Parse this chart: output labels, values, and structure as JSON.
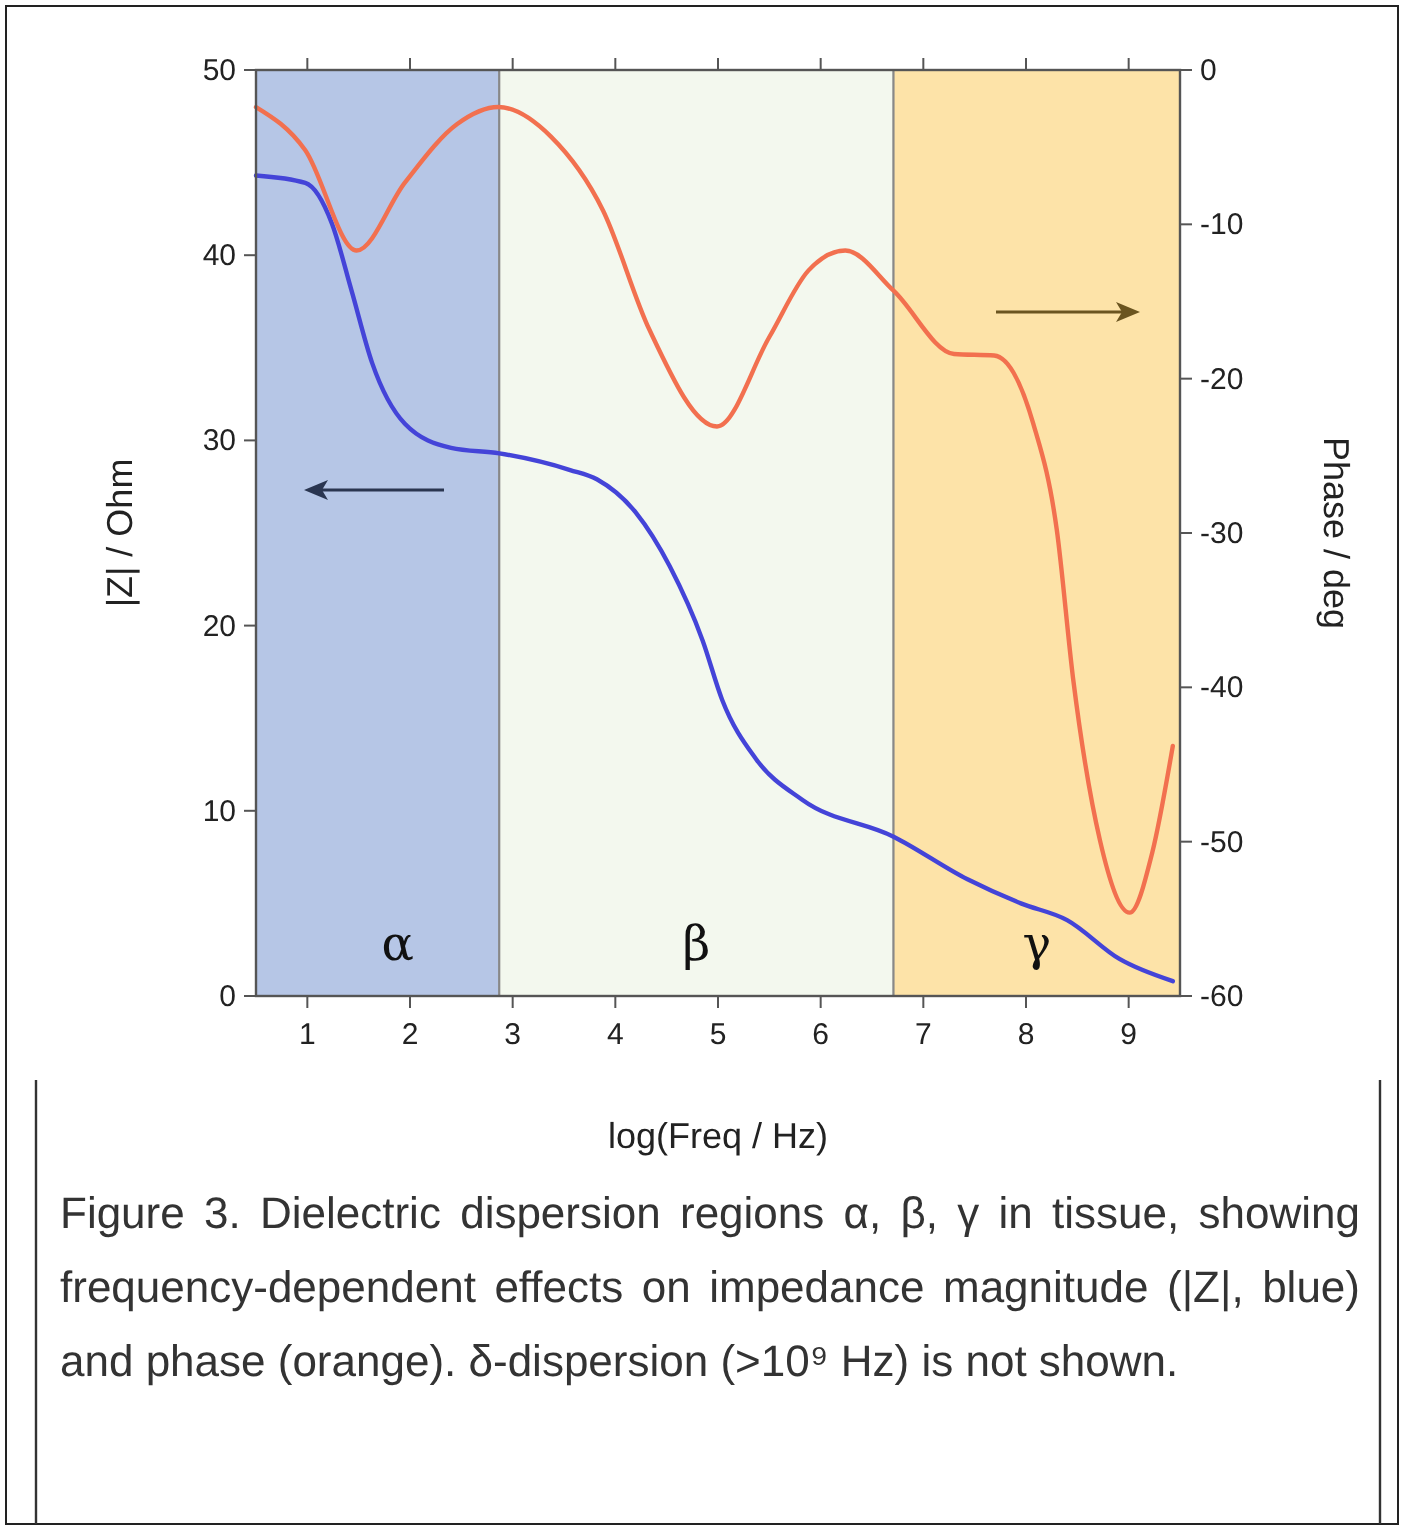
{
  "chart_data": {
    "type": "line",
    "xlabel": "log(Freq / Hz)",
    "ylabel": "|Z| / Ohm",
    "y2label": "Phase / deg",
    "xlim": [
      0.5,
      9.5
    ],
    "xticks": [
      1,
      2,
      3,
      4,
      5,
      6,
      7,
      8,
      9
    ],
    "ylim": [
      0,
      50
    ],
    "yticks": [
      0,
      10,
      20,
      30,
      40,
      50
    ],
    "y2lim": [
      -60,
      0
    ],
    "y2ticks": [
      -60,
      -50,
      -40,
      -30,
      -20,
      -10,
      0
    ],
    "grid": false,
    "line_style": "solid",
    "marker": "none",
    "bands": [
      {
        "axis": "x",
        "from": 0.5,
        "to": 2.87,
        "label": "α",
        "color": "#b6c6e6"
      },
      {
        "axis": "x",
        "from": 2.87,
        "to": 6.71,
        "label": "β",
        "color": "#f3f8ee"
      },
      {
        "axis": "x",
        "from": 6.71,
        "to": 9.5,
        "label": "γ",
        "color": "#fde3a8"
      }
    ],
    "series": [
      {
        "color": "#4444d8",
        "x": [
          0.5,
          0.98,
          1.24,
          1.43,
          1.63,
          1.95,
          2.4,
          2.87,
          3.56,
          3.82,
          4.2,
          4.53,
          4.85,
          5.04,
          5.37,
          5.82,
          6.71,
          7.43,
          7.95,
          8.4,
          8.91,
          9.43
        ],
        "values": [
          44.3,
          43.9,
          41.7,
          38.1,
          34.2,
          30.9,
          29.6,
          29.3,
          28.4,
          27.9,
          26.1,
          23.2,
          19.2,
          16.0,
          12.8,
          10.6,
          8.6,
          6.3,
          5.0,
          4.1,
          2.0,
          0.8
        ]
      },
      {
        "color": "#f2704f",
        "axis": "y2",
        "x": [
          0.5,
          0.98,
          1.48,
          1.95,
          2.46,
          2.86,
          3.37,
          3.88,
          4.33,
          4.99,
          5.5,
          5.88,
          6.24,
          6.71,
          7.3,
          7.69,
          8.07,
          8.3,
          8.46,
          8.72,
          9.01,
          9.23,
          9.43
        ],
        "values": [
          -2.4,
          -5.2,
          -11.7,
          -7.3,
          -3.5,
          -2.4,
          -4.3,
          -9.1,
          -16.8,
          -23.1,
          -17.3,
          -13.0,
          -11.7,
          -14.3,
          -18.4,
          -18.5,
          -22.9,
          -29.8,
          -39.5,
          -49.9,
          -54.6,
          -50.7,
          -43.8
        ]
      }
    ],
    "annotations": [
      "Figure 3. Dielectric dispersion regions α, β, γ in tissue, showing frequency-dependent effects on impedance magnitude (|Z|, blue) and phase (orange). δ-dispersion (>10⁹ Hz) is not shown."
    ]
  }
}
